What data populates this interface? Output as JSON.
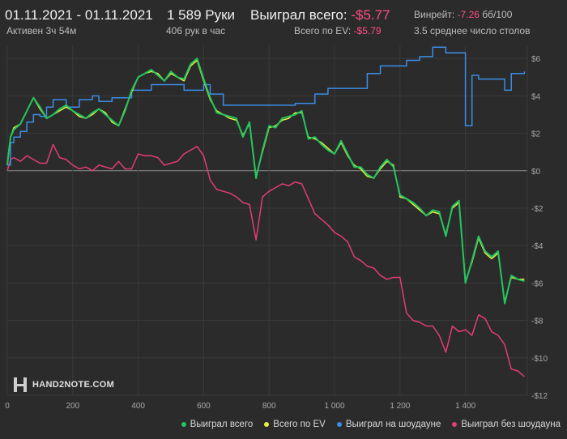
{
  "header": {
    "date_range": "01.11.2021 - 01.11.2021",
    "active": "Активен 3ч 54м",
    "hands": "1 589 Руки",
    "hands_per_hour": "406 рук в час",
    "won_label": "Выиграл всего:",
    "won_value": "-$5.77",
    "ev_label": "Всего по EV:",
    "ev_value": "-$5.79",
    "winrate_label": "Винрейт:",
    "winrate_value": "-7.26",
    "winrate_unit": "бб/100",
    "tables": "3.5 среднее число столов"
  },
  "logo": {
    "text": "HAND2NOTE.COM"
  },
  "colors": {
    "won": "#22c55e",
    "ev": "#e8f040",
    "showdown": "#3b8ee8",
    "non_showdown": "#e23d74",
    "background": "#2b2b2b",
    "grid": "#3a3a3a",
    "zero_line": "#8c8c8c"
  },
  "legend": [
    {
      "label": "Выиграл всего",
      "color": "#22c55e"
    },
    {
      "label": "Всего по EV",
      "color": "#e8f040"
    },
    {
      "label": "Выиграл на шоудауне",
      "color": "#3b8ee8"
    },
    {
      "label": "Выиграл без шоудауна",
      "color": "#e23d74"
    }
  ],
  "chart_data": {
    "type": "line",
    "xlim": [
      0,
      1589
    ],
    "ylim": [
      -12,
      6.7
    ],
    "x_ticks": [
      0,
      200,
      400,
      600,
      800,
      1000,
      1200,
      1400
    ],
    "x_tick_labels": [
      "0",
      "200",
      "400",
      "600",
      "800",
      "1 000",
      "1 200",
      "1 400"
    ],
    "y_ticks": [
      6,
      4,
      2,
      0,
      -2,
      -4,
      -6,
      -8,
      -10,
      -12
    ],
    "y_tick_labels": [
      "$6",
      "$4",
      "$2",
      "$0",
      "-$2",
      "-$4",
      "-$6",
      "-$8",
      "-$10",
      "-$12"
    ],
    "grid": true,
    "legend_position": "bottom-right",
    "series": [
      {
        "name": "Выиграл всего",
        "color": "#22c55e",
        "x": [
          0,
          10,
          20,
          40,
          60,
          80,
          100,
          120,
          140,
          160,
          180,
          200,
          220,
          240,
          260,
          280,
          300,
          320,
          340,
          360,
          380,
          400,
          420,
          440,
          460,
          480,
          500,
          520,
          540,
          560,
          580,
          600,
          620,
          640,
          660,
          680,
          700,
          720,
          740,
          760,
          780,
          800,
          820,
          840,
          860,
          880,
          900,
          920,
          940,
          960,
          980,
          1000,
          1020,
          1040,
          1060,
          1080,
          1100,
          1120,
          1140,
          1160,
          1180,
          1200,
          1220,
          1240,
          1260,
          1280,
          1300,
          1320,
          1340,
          1360,
          1380,
          1400,
          1420,
          1440,
          1460,
          1480,
          1500,
          1520,
          1540,
          1560,
          1580
        ],
        "y": [
          0.3,
          1.8,
          2.2,
          2.5,
          3.2,
          3.9,
          3.4,
          2.8,
          3.0,
          3.3,
          3.5,
          3.2,
          3.0,
          2.8,
          3.1,
          3.3,
          3.0,
          2.7,
          2.4,
          3.2,
          4.3,
          5.0,
          5.2,
          5.4,
          5.1,
          4.8,
          5.3,
          5.0,
          4.9,
          5.7,
          6.0,
          4.9,
          3.9,
          3.1,
          3.0,
          2.9,
          2.8,
          1.8,
          2.6,
          -0.4,
          1.1,
          2.4,
          2.3,
          2.8,
          2.9,
          3.0,
          3.2,
          1.7,
          1.8,
          1.4,
          1.1,
          0.9,
          1.6,
          0.9,
          0.2,
          0.2,
          -0.2,
          -0.4,
          0.2,
          0.6,
          0.2,
          -1.3,
          -1.5,
          -1.7,
          -2.0,
          -2.4,
          -2.1,
          -2.2,
          -3.5,
          -1.9,
          -1.6,
          -6.0,
          -4.8,
          -3.5,
          -4.3,
          -4.6,
          -4.3,
          -7.1,
          -5.6,
          -5.8,
          -5.9
        ]
      },
      {
        "name": "Всего по EV",
        "color": "#e8f040",
        "x": [
          0,
          10,
          20,
          40,
          60,
          80,
          100,
          120,
          140,
          160,
          180,
          200,
          220,
          240,
          260,
          280,
          300,
          320,
          340,
          360,
          380,
          400,
          420,
          440,
          460,
          480,
          500,
          520,
          540,
          560,
          580,
          600,
          620,
          640,
          660,
          680,
          700,
          720,
          740,
          760,
          780,
          800,
          820,
          840,
          860,
          880,
          900,
          920,
          940,
          960,
          980,
          1000,
          1020,
          1040,
          1060,
          1080,
          1100,
          1120,
          1140,
          1160,
          1180,
          1200,
          1220,
          1240,
          1260,
          1280,
          1300,
          1320,
          1340,
          1360,
          1380,
          1400,
          1420,
          1440,
          1460,
          1480,
          1500,
          1520,
          1540,
          1560,
          1580
        ],
        "y": [
          0.4,
          1.8,
          2.3,
          2.5,
          3.2,
          3.9,
          3.3,
          2.8,
          3.0,
          3.2,
          3.4,
          3.2,
          2.9,
          2.8,
          3.0,
          3.3,
          3.1,
          2.6,
          2.4,
          3.3,
          4.2,
          5.0,
          5.2,
          5.3,
          5.2,
          4.8,
          5.2,
          5.0,
          4.8,
          5.6,
          5.9,
          4.8,
          3.8,
          3.2,
          3.0,
          2.8,
          2.7,
          1.9,
          2.5,
          -0.3,
          1.0,
          2.3,
          2.4,
          2.7,
          2.8,
          3.1,
          3.1,
          1.8,
          1.7,
          1.5,
          1.2,
          0.9,
          1.5,
          0.8,
          0.3,
          0.1,
          -0.3,
          -0.4,
          0.1,
          0.5,
          0.3,
          -1.4,
          -1.5,
          -1.8,
          -2.1,
          -2.4,
          -2.2,
          -2.3,
          -3.4,
          -2.0,
          -1.7,
          -5.9,
          -4.9,
          -3.6,
          -4.4,
          -4.7,
          -4.4,
          -7.0,
          -5.7,
          -5.8,
          -5.8
        ]
      },
      {
        "name": "Выиграл на шоудауне",
        "color": "#3b8ee8",
        "x": [
          0,
          10,
          20,
          40,
          60,
          80,
          100,
          120,
          140,
          160,
          180,
          200,
          220,
          240,
          260,
          280,
          300,
          320,
          340,
          360,
          380,
          400,
          420,
          440,
          460,
          480,
          500,
          520,
          540,
          560,
          580,
          600,
          620,
          640,
          660,
          680,
          700,
          720,
          740,
          760,
          780,
          800,
          820,
          840,
          860,
          880,
          900,
          920,
          940,
          960,
          980,
          1000,
          1020,
          1040,
          1060,
          1080,
          1100,
          1120,
          1140,
          1160,
          1180,
          1200,
          1220,
          1240,
          1260,
          1280,
          1300,
          1320,
          1340,
          1360,
          1380,
          1400,
          1420,
          1440,
          1460,
          1480,
          1500,
          1520,
          1540,
          1560,
          1580
        ],
        "y": [
          0.3,
          1.5,
          1.8,
          2.1,
          2.6,
          3.0,
          2.9,
          3.4,
          3.8,
          3.8,
          3.4,
          3.4,
          3.8,
          3.8,
          4.0,
          3.7,
          3.7,
          3.9,
          3.9,
          3.9,
          4.3,
          4.3,
          4.3,
          4.6,
          4.6,
          4.6,
          4.6,
          4.6,
          4.3,
          4.3,
          4.3,
          4.6,
          4.1,
          4.1,
          3.5,
          3.5,
          3.5,
          3.5,
          3.5,
          3.5,
          3.5,
          3.5,
          3.5,
          3.5,
          3.5,
          3.6,
          3.6,
          3.6,
          4.1,
          4.1,
          4.4,
          4.4,
          4.4,
          4.4,
          4.4,
          4.4,
          5.2,
          5.2,
          5.6,
          5.6,
          5.6,
          5.6,
          5.9,
          5.9,
          6.1,
          6.1,
          6.6,
          6.6,
          6.3,
          6.3,
          6.3,
          2.4,
          5.1,
          4.9,
          4.9,
          4.9,
          4.9,
          4.3,
          5.2,
          5.2,
          5.3
        ]
      },
      {
        "name": "Выиграл без шоудауна",
        "color": "#e23d74",
        "x": [
          0,
          10,
          20,
          40,
          60,
          80,
          100,
          120,
          140,
          160,
          180,
          200,
          220,
          240,
          260,
          280,
          300,
          320,
          340,
          360,
          380,
          400,
          420,
          440,
          460,
          480,
          500,
          520,
          540,
          560,
          580,
          600,
          620,
          640,
          660,
          680,
          700,
          720,
          740,
          760,
          780,
          800,
          820,
          840,
          860,
          880,
          900,
          920,
          940,
          960,
          980,
          1000,
          1020,
          1040,
          1060,
          1080,
          1100,
          1120,
          1140,
          1160,
          1180,
          1200,
          1220,
          1240,
          1260,
          1280,
          1300,
          1320,
          1340,
          1360,
          1380,
          1400,
          1420,
          1440,
          1460,
          1480,
          1500,
          1520,
          1540,
          1560,
          1580
        ],
        "y": [
          0.0,
          0.6,
          0.7,
          0.5,
          0.8,
          0.6,
          0.4,
          0.4,
          1.4,
          0.7,
          0.6,
          0.3,
          0.1,
          0.2,
          0.0,
          0.3,
          0.2,
          0.1,
          0.5,
          0.1,
          0.1,
          0.9,
          0.8,
          0.8,
          0.7,
          0.3,
          0.4,
          0.5,
          0.9,
          1.1,
          1.3,
          0.8,
          -0.5,
          -1.0,
          -1.1,
          -1.2,
          -1.4,
          -1.7,
          -1.8,
          -3.7,
          -1.4,
          -1.1,
          -0.9,
          -0.7,
          -0.8,
          -0.6,
          -0.7,
          -1.5,
          -2.3,
          -2.6,
          -2.9,
          -3.3,
          -3.5,
          -3.8,
          -4.6,
          -4.8,
          -5.1,
          -5.2,
          -5.6,
          -5.8,
          -5.7,
          -5.7,
          -7.6,
          -8.0,
          -8.1,
          -8.3,
          -8.3,
          -8.8,
          -9.7,
          -8.3,
          -8.6,
          -8.5,
          -8.8,
          -7.7,
          -7.9,
          -8.6,
          -8.8,
          -9.3,
          -10.6,
          -10.7,
          -11.0
        ]
      }
    ]
  }
}
